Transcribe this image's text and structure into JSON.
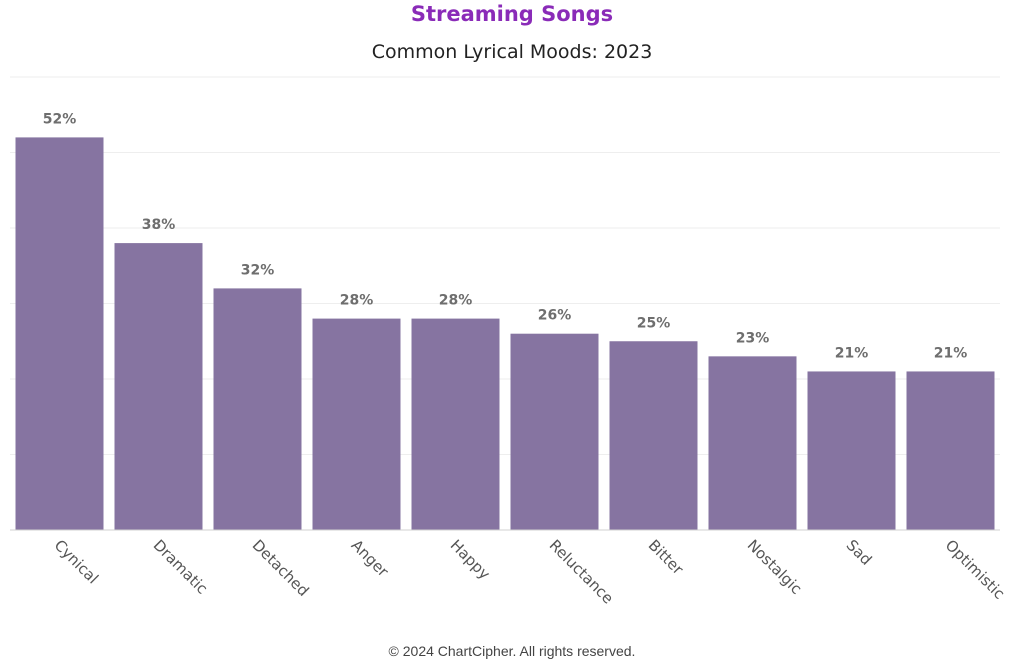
{
  "chart_data": {
    "type": "bar",
    "title": "Streaming Songs",
    "subtitle": "Common Lyrical Moods: 2023",
    "categories": [
      "Cynical",
      "Dramatic",
      "Detached",
      "Anger",
      "Happy",
      "Reluctance",
      "Bitter",
      "Nostalgic",
      "Sad",
      "Optimistic"
    ],
    "values": [
      52,
      38,
      32,
      28,
      28,
      26,
      25,
      23,
      21,
      21
    ],
    "data_labels": [
      "52%",
      "38%",
      "32%",
      "28%",
      "28%",
      "26%",
      "25%",
      "23%",
      "21%",
      "21%"
    ],
    "value_unit": "%",
    "ylim": [
      0,
      60
    ],
    "grid": true,
    "bar_color": "#8674a1",
    "title_color": "#8a2bb8"
  },
  "footer": {
    "copyright": "© 2024 ChartCipher. All rights reserved."
  }
}
